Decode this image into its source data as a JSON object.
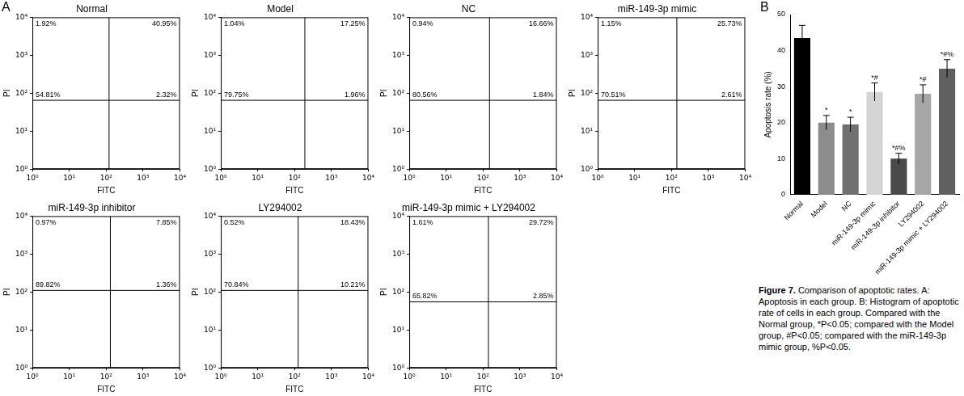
{
  "chart_data": [
    {
      "type": "scatter",
      "panel_label": "A",
      "title": "Normal",
      "x_label": "FITC",
      "y_label": "PI",
      "log": true,
      "grid": false,
      "xlim": [
        1,
        10000
      ],
      "ylim": [
        1,
        10000
      ],
      "xticks": [
        {
          "value": 1,
          "label": "10⁰"
        },
        {
          "value": 10,
          "label": "10¹"
        },
        {
          "value": 100,
          "label": "10²"
        },
        {
          "value": 1000,
          "label": "10³"
        },
        {
          "value": 10000,
          "label": "10⁴"
        }
      ],
      "yticks": [
        {
          "value": 1,
          "label": "10⁰"
        },
        {
          "value": 10,
          "label": "10¹"
        },
        {
          "value": 100,
          "label": "10²"
        },
        {
          "value": 1000,
          "label": "10³"
        },
        {
          "value": 10000,
          "label": "10⁴"
        }
      ],
      "quadrant_gate": {
        "x": 120,
        "y": 65
      },
      "quadrant_labels": {
        "upper_left": "1.92%",
        "upper_right": "40.95%",
        "lower_left": "54.81%",
        "lower_right": "2.32%"
      }
    },
    {
      "type": "scatter",
      "title": "Model",
      "x_label": "FITC",
      "y_label": "PI",
      "log": true,
      "grid": false,
      "xlim": [
        1,
        10000
      ],
      "ylim": [
        1,
        10000
      ],
      "xticks": [
        {
          "value": 1,
          "label": "10⁰"
        },
        {
          "value": 10,
          "label": "10¹"
        },
        {
          "value": 100,
          "label": "10²"
        },
        {
          "value": 1000,
          "label": "10³"
        },
        {
          "value": 10000,
          "label": "10⁴"
        }
      ],
      "yticks": [
        {
          "value": 1,
          "label": "10⁰"
        },
        {
          "value": 10,
          "label": "10¹"
        },
        {
          "value": 100,
          "label": "10²"
        },
        {
          "value": 1000,
          "label": "10³"
        },
        {
          "value": 10000,
          "label": "10⁴"
        }
      ],
      "quadrant_gate": {
        "x": 190,
        "y": 65
      },
      "quadrant_labels": {
        "upper_left": "1.04%",
        "upper_right": "17.25%",
        "lower_left": "79.75%",
        "lower_right": "1.96%"
      }
    },
    {
      "type": "scatter",
      "title": "NC",
      "x_label": "FITC",
      "y_label": "PI",
      "log": true,
      "grid": false,
      "xlim": [
        1,
        10000
      ],
      "ylim": [
        1,
        10000
      ],
      "xticks": [
        {
          "value": 1,
          "label": "10⁰"
        },
        {
          "value": 10,
          "label": "10¹"
        },
        {
          "value": 100,
          "label": "10²"
        },
        {
          "value": 1000,
          "label": "10³"
        },
        {
          "value": 10000,
          "label": "10⁴"
        }
      ],
      "yticks": [
        {
          "value": 1,
          "label": "10⁰"
        },
        {
          "value": 10,
          "label": "10¹"
        },
        {
          "value": 100,
          "label": "10²"
        },
        {
          "value": 1000,
          "label": "10³"
        },
        {
          "value": 10000,
          "label": "10⁴"
        }
      ],
      "quadrant_gate": {
        "x": 150,
        "y": 65
      },
      "quadrant_labels": {
        "upper_left": "0.94%",
        "upper_right": "16.66%",
        "lower_left": "80.56%",
        "lower_right": "1.84%"
      }
    },
    {
      "type": "scatter",
      "title": "miR-149-3p mimic",
      "x_label": "FITC",
      "y_label": "PI",
      "log": true,
      "grid": false,
      "xlim": [
        1,
        10000
      ],
      "ylim": [
        1,
        10000
      ],
      "xticks": [
        {
          "value": 1,
          "label": "10⁰"
        },
        {
          "value": 10,
          "label": "10¹"
        },
        {
          "value": 100,
          "label": "10²"
        },
        {
          "value": 1000,
          "label": "10³"
        },
        {
          "value": 10000,
          "label": "10⁴"
        }
      ],
      "yticks": [
        {
          "value": 1,
          "label": "10⁰"
        },
        {
          "value": 10,
          "label": "10¹"
        },
        {
          "value": 100,
          "label": "10²"
        },
        {
          "value": 1000,
          "label": "10³"
        },
        {
          "value": 10000,
          "label": "10⁴"
        }
      ],
      "quadrant_gate": {
        "x": 140,
        "y": 65
      },
      "quadrant_labels": {
        "upper_left": "1.15%",
        "upper_right": "25.73%",
        "lower_left": "70.51%",
        "lower_right": "2.61%"
      }
    },
    {
      "type": "scatter",
      "title": "miR-149-3p inhibitor",
      "x_label": "FITC",
      "y_label": "PI",
      "log": true,
      "grid": false,
      "xlim": [
        1,
        10000
      ],
      "ylim": [
        1,
        10000
      ],
      "xticks": [
        {
          "value": 1,
          "label": "10⁰"
        },
        {
          "value": 10,
          "label": "10¹"
        },
        {
          "value": 100,
          "label": "10²"
        },
        {
          "value": 1000,
          "label": "10³"
        },
        {
          "value": 10000,
          "label": "10⁴"
        }
      ],
      "yticks": [
        {
          "value": 1,
          "label": "10⁰"
        },
        {
          "value": 10,
          "label": "10¹"
        },
        {
          "value": 100,
          "label": "10²"
        },
        {
          "value": 1000,
          "label": "10³"
        },
        {
          "value": 10000,
          "label": "10⁴"
        }
      ],
      "quadrant_gate": {
        "x": 130,
        "y": 110
      },
      "quadrant_labels": {
        "upper_left": "0.97%",
        "upper_right": "7.85%",
        "lower_left": "89.82%",
        "lower_right": "1.36%"
      }
    },
    {
      "type": "scatter",
      "title": "LY294002",
      "x_label": "FITC",
      "y_label": "PI",
      "log": true,
      "grid": false,
      "xlim": [
        1,
        10000
      ],
      "ylim": [
        1,
        10000
      ],
      "xticks": [
        {
          "value": 1,
          "label": "10⁰"
        },
        {
          "value": 10,
          "label": "10¹"
        },
        {
          "value": 100,
          "label": "10²"
        },
        {
          "value": 1000,
          "label": "10³"
        },
        {
          "value": 10000,
          "label": "10⁴"
        }
      ],
      "yticks": [
        {
          "value": 1,
          "label": "10⁰"
        },
        {
          "value": 10,
          "label": "10¹"
        },
        {
          "value": 100,
          "label": "10²"
        },
        {
          "value": 1000,
          "label": "10³"
        },
        {
          "value": 10000,
          "label": "10⁴"
        }
      ],
      "quadrant_gate": {
        "x": 125,
        "y": 110
      },
      "quadrant_labels": {
        "upper_left": "0.52%",
        "upper_right": "18.43%",
        "lower_left": "70.84%",
        "lower_right": "10.21%"
      }
    },
    {
      "type": "scatter",
      "title": "miR-149-3p mimic + LY294002",
      "x_label": "FITC",
      "y_label": "PI",
      "log": true,
      "grid": false,
      "xlim": [
        1,
        10000
      ],
      "ylim": [
        1,
        10000
      ],
      "xticks": [
        {
          "value": 1,
          "label": "10⁰"
        },
        {
          "value": 10,
          "label": "10¹"
        },
        {
          "value": 100,
          "label": "10²"
        },
        {
          "value": 1000,
          "label": "10³"
        },
        {
          "value": 10000,
          "label": "10⁴"
        }
      ],
      "yticks": [
        {
          "value": 1,
          "label": "10⁰"
        },
        {
          "value": 10,
          "label": "10¹"
        },
        {
          "value": 100,
          "label": "10²"
        },
        {
          "value": 1000,
          "label": "10³"
        },
        {
          "value": 10000,
          "label": "10⁴"
        }
      ],
      "quadrant_gate": {
        "x": 140,
        "y": 55
      },
      "quadrant_labels": {
        "upper_left": "1.61%",
        "upper_right": "29.72%",
        "lower_left": "65.82%",
        "lower_right": "2.85%"
      }
    },
    {
      "type": "bar",
      "panel_label": "B",
      "y_label": "Apoptosis rate (%)",
      "grid": false,
      "categories": [
        "Normal",
        "Model",
        "NC",
        "miR-149-3p mimic",
        "miR-149-3p inhibitor",
        "LY294002",
        "miR-149-3p mimic + LY294002"
      ],
      "values": [
        43.5,
        20,
        19.5,
        28.5,
        10,
        28,
        35
      ],
      "errors": [
        3.5,
        2,
        2,
        2.5,
        1.5,
        2.5,
        2.5
      ],
      "annotations": [
        "",
        "*",
        "*",
        "*#",
        "*#%",
        "*#",
        "*#%"
      ],
      "colors": [
        "#000000",
        "#8c8c8c",
        "#707070",
        "#d4d4d4",
        "#4a4a4a",
        "#a6a6a6",
        "#606060"
      ],
      "ylim": [
        0,
        50
      ],
      "yticks": [
        0,
        10,
        20,
        30,
        40,
        50
      ]
    }
  ],
  "caption_title": "Figure 7.",
  "caption": "Comparison of apoptotic rates. A: Apoptosis in each group. B: Histogram of apoptotic rate of cells in each group. Compared with the Normal group, *P<0.05; compared with the Model group, #P<0.05; compared with the miR-149-3p mimic group, %P<0.05."
}
